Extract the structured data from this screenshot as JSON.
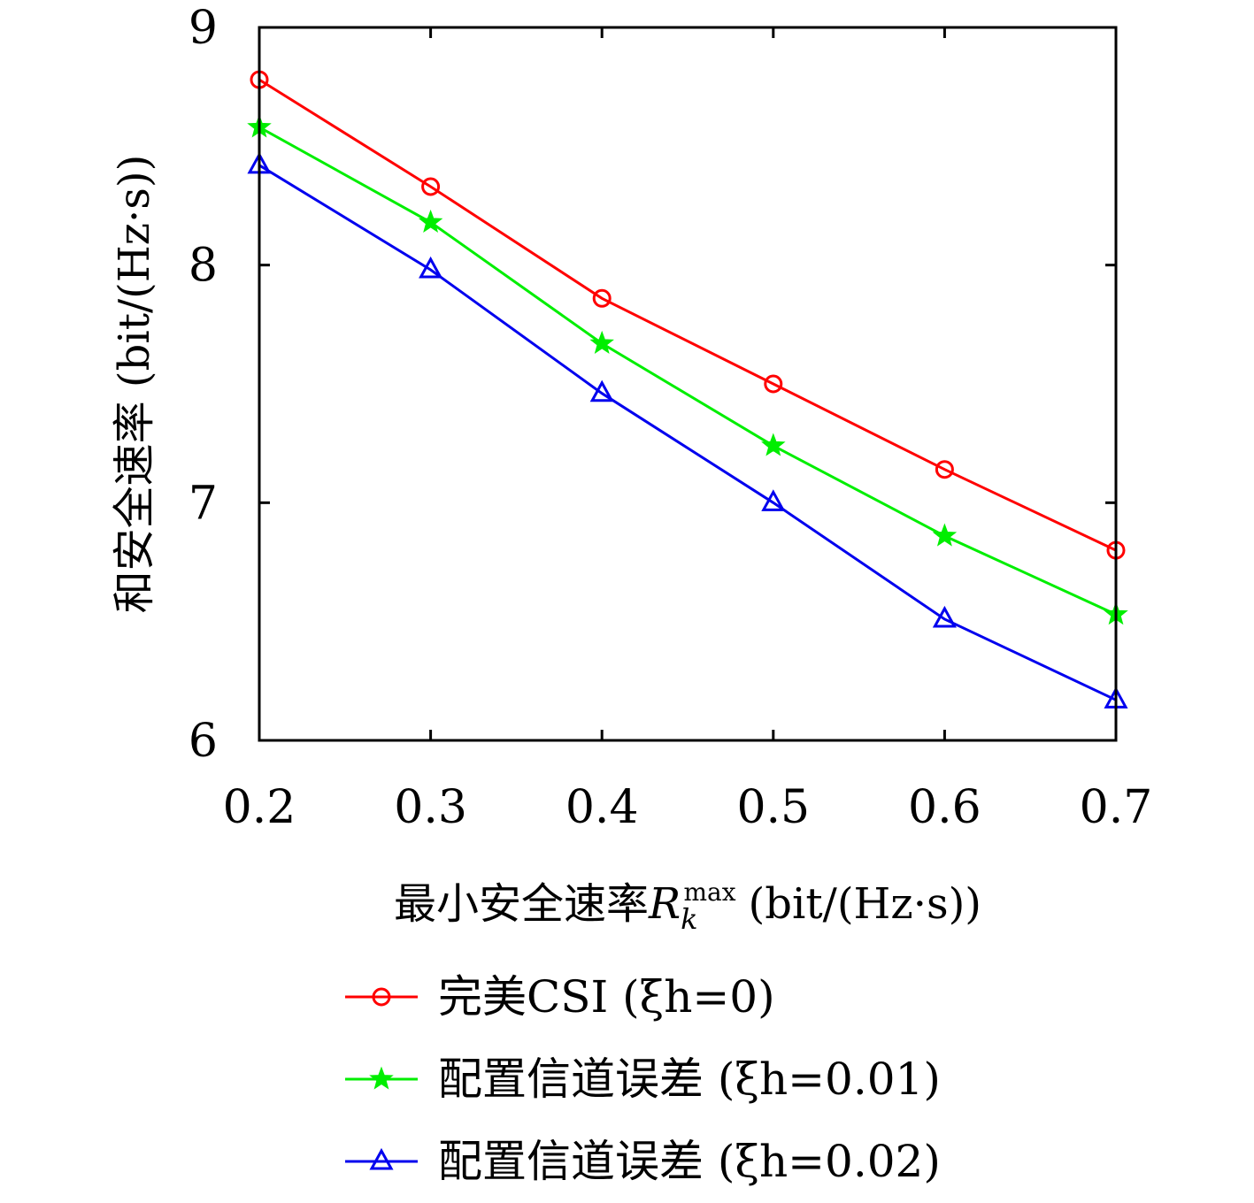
{
  "chart_data": {
    "type": "line",
    "title": "",
    "xlabel": {
      "prefix": "最小安全速率",
      "symbol": "R",
      "subscript": "k",
      "superscript": "max",
      "unit": "(bit/(Hz·s))"
    },
    "ylabel": "和安全速率 (bit/(Hz·s))",
    "x": [
      0.2,
      0.3,
      0.4,
      0.5,
      0.6,
      0.7
    ],
    "xticks": [
      "0.2",
      "0.3",
      "0.4",
      "0.5",
      "0.6",
      "0.7"
    ],
    "xlim": [
      0.2,
      0.7
    ],
    "ylim": [
      6,
      9
    ],
    "yticks": [
      "6",
      "7",
      "8",
      "9"
    ],
    "grid": false,
    "legend_position": "bottom",
    "series": [
      {
        "name": "完美CSI",
        "legend_param": "(ξh=0)",
        "color": "#ff0000",
        "marker": "circle",
        "values": [
          8.78,
          8.33,
          7.86,
          7.5,
          7.14,
          6.8
        ]
      },
      {
        "name": "配置信道误差",
        "legend_param": "(ξh=0.01)",
        "color": "#00ee00",
        "marker": "star",
        "values": [
          8.58,
          8.18,
          7.67,
          7.24,
          6.86,
          6.53
        ]
      },
      {
        "name": "配置信道误差",
        "legend_param": "(ξh=0.02)",
        "color": "#0000ee",
        "marker": "triangle",
        "values": [
          8.42,
          7.98,
          7.46,
          7.0,
          6.51,
          6.17
        ]
      }
    ]
  }
}
